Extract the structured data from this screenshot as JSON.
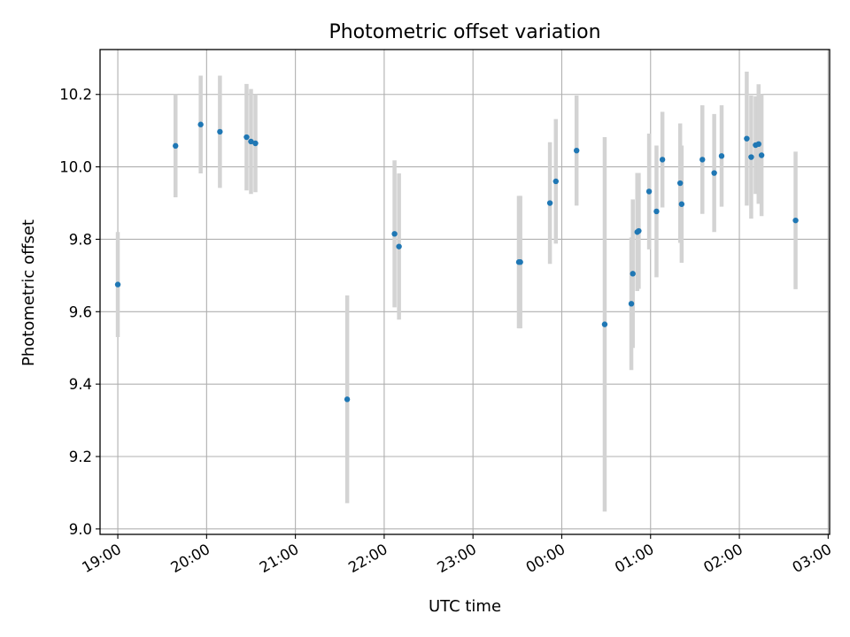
{
  "chart_data": {
    "type": "scatter",
    "title": "Photometric offset variation",
    "xlabel": "UTC time",
    "ylabel": "Photometric offset",
    "grid": true,
    "x_axis": {
      "type": "time",
      "ticks": [
        "19:00",
        "20:00",
        "21:00",
        "22:00",
        "23:00",
        "00:00",
        "01:00",
        "02:00",
        "03:00"
      ],
      "xlim": [
        "18:48",
        "03:01"
      ]
    },
    "y_axis": {
      "ticks": [
        "9.0",
        "9.2",
        "9.4",
        "9.6",
        "9.8",
        "10.0",
        "10.2"
      ],
      "ylim": [
        8.985,
        10.324
      ]
    },
    "errorbar_color": "#d3d3d3",
    "point_color": "#1f77b4",
    "points": [
      {
        "time": "19:00",
        "y": 9.675,
        "err": 0.145
      },
      {
        "time": "19:39",
        "y": 10.058,
        "err": 0.142
      },
      {
        "time": "19:56",
        "y": 10.117,
        "err": 0.135
      },
      {
        "time": "20:09",
        "y": 10.097,
        "err": 0.155
      },
      {
        "time": "20:27",
        "y": 10.082,
        "err": 0.147
      },
      {
        "time": "20:30",
        "y": 10.07,
        "err": 0.145
      },
      {
        "time": "20:33",
        "y": 10.065,
        "err": 0.135
      },
      {
        "time": "21:35",
        "y": 9.358,
        "err": 0.287
      },
      {
        "time": "22:07",
        "y": 9.815,
        "err": 0.203
      },
      {
        "time": "22:10",
        "y": 9.78,
        "err": 0.202
      },
      {
        "time": "23:31",
        "y": 9.737,
        "err": 0.183
      },
      {
        "time": "23:32",
        "y": 9.737,
        "err": 0.183
      },
      {
        "time": "23:52",
        "y": 9.9,
        "err": 0.168
      },
      {
        "time": "23:56",
        "y": 9.96,
        "err": 0.172
      },
      {
        "time": "00:10",
        "y": 10.045,
        "err": 0.152
      },
      {
        "time": "00:29",
        "y": 9.565,
        "err": 0.517
      },
      {
        "time": "00:47",
        "y": 9.622,
        "err": 0.183
      },
      {
        "time": "00:48",
        "y": 9.705,
        "err": 0.205
      },
      {
        "time": "00:51",
        "y": 9.82,
        "err": 0.163
      },
      {
        "time": "00:52",
        "y": 9.823,
        "err": 0.16
      },
      {
        "time": "00:59",
        "y": 9.932,
        "err": 0.16
      },
      {
        "time": "01:04",
        "y": 9.877,
        "err": 0.182
      },
      {
        "time": "01:08",
        "y": 10.02,
        "err": 0.132
      },
      {
        "time": "01:20",
        "y": 9.955,
        "err": 0.165
      },
      {
        "time": "01:21",
        "y": 9.897,
        "err": 0.162
      },
      {
        "time": "01:35",
        "y": 10.02,
        "err": 0.15
      },
      {
        "time": "01:43",
        "y": 9.983,
        "err": 0.163
      },
      {
        "time": "01:48",
        "y": 10.03,
        "err": 0.14
      },
      {
        "time": "02:05",
        "y": 10.078,
        "err": 0.185
      },
      {
        "time": "02:08",
        "y": 10.027,
        "err": 0.17
      },
      {
        "time": "02:11",
        "y": 10.06,
        "err": 0.135
      },
      {
        "time": "02:13",
        "y": 10.063,
        "err": 0.165
      },
      {
        "time": "02:15",
        "y": 10.032,
        "err": 0.168
      },
      {
        "time": "02:38",
        "y": 9.852,
        "err": 0.19
      }
    ]
  }
}
